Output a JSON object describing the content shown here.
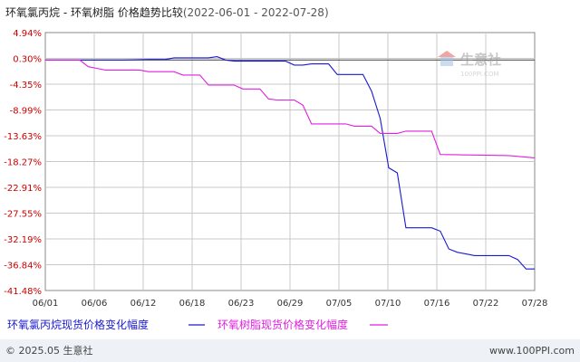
{
  "header": {
    "title_a": "环氧氯丙烷",
    "title_sep": " - ",
    "title_b": "环氧树脂",
    "title_suffix": " 价格趋势比较",
    "date_range": "(2022-06-01 - 2022-07-28)"
  },
  "watermark": {
    "text": "生意社",
    "sub_text": "100PPI.COM"
  },
  "footer": {
    "copyright": "© 2025.05 生意社",
    "url": "www.100PPI.com"
  },
  "colors": {
    "series_a": "#1a1ad0",
    "series_b": "#e21ee2",
    "zero_line": "#555555",
    "grid": "#c8c8c8",
    "footer_bg": "#eef1f6"
  },
  "chart_data": {
    "type": "line",
    "x_ticks": [
      "06/01",
      "06/06",
      "06/12",
      "06/18",
      "06/23",
      "06/29",
      "07/05",
      "07/10",
      "07/16",
      "07/22",
      "07/28"
    ],
    "y_ticks": [
      "4.94%",
      "0.30%",
      "-4.35%",
      "-8.99%",
      "-13.63%",
      "-18.27%",
      "-22.91%",
      "-27.55%",
      "-32.19%",
      "-36.84%",
      "-41.48%"
    ],
    "ylim": [
      -41.48,
      4.94
    ],
    "xlim": [
      "2022-06-01",
      "2022-07-28"
    ],
    "grid": true,
    "legend_position": "bottom",
    "series": [
      {
        "name": "环氧氯丙烷现货价格变化幅度",
        "color": "#1a1ad0",
        "points": [
          [
            "2022-06-01",
            0.0
          ],
          [
            "2022-06-02",
            0.0
          ],
          [
            "2022-06-06",
            0.0
          ],
          [
            "2022-06-07",
            0.0
          ],
          [
            "2022-06-10",
            0.0
          ],
          [
            "2022-06-13",
            0.1
          ],
          [
            "2022-06-15",
            0.1
          ],
          [
            "2022-06-16",
            0.4
          ],
          [
            "2022-06-20",
            0.4
          ],
          [
            "2022-06-21",
            0.6
          ],
          [
            "2022-06-22",
            0.0
          ],
          [
            "2022-06-23",
            -0.2
          ],
          [
            "2022-06-29",
            -0.2
          ],
          [
            "2022-06-30",
            -0.9
          ],
          [
            "2022-07-01",
            -0.9
          ],
          [
            "2022-07-02",
            -0.7
          ],
          [
            "2022-07-04",
            -0.7
          ],
          [
            "2022-07-05",
            -2.6
          ],
          [
            "2022-07-08",
            -2.6
          ],
          [
            "2022-07-09",
            -5.6
          ],
          [
            "2022-07-10",
            -10.5
          ],
          [
            "2022-07-11",
            -19.4
          ],
          [
            "2022-07-12",
            -20.3
          ],
          [
            "2022-07-13",
            -30.2
          ],
          [
            "2022-07-15",
            -30.2
          ],
          [
            "2022-07-16",
            -30.2
          ],
          [
            "2022-07-17",
            -30.8
          ],
          [
            "2022-07-18",
            -34.0
          ],
          [
            "2022-07-19",
            -34.6
          ],
          [
            "2022-07-20",
            -34.9
          ],
          [
            "2022-07-21",
            -35.2
          ],
          [
            "2022-07-25",
            -35.2
          ],
          [
            "2022-07-26",
            -35.9
          ],
          [
            "2022-07-27",
            -37.6
          ],
          [
            "2022-07-28",
            -37.6
          ]
        ]
      },
      {
        "name": "环氧树脂现货价格变化幅度",
        "color": "#e21ee2",
        "points": [
          [
            "2022-06-01",
            0.0
          ],
          [
            "2022-06-02",
            0.0
          ],
          [
            "2022-06-05",
            0.0
          ],
          [
            "2022-06-06",
            -1.2
          ],
          [
            "2022-06-07",
            -1.5
          ],
          [
            "2022-06-08",
            -1.8
          ],
          [
            "2022-06-12",
            -1.8
          ],
          [
            "2022-06-13",
            -2.1
          ],
          [
            "2022-06-16",
            -2.1
          ],
          [
            "2022-06-17",
            -2.7
          ],
          [
            "2022-06-18",
            -2.7
          ],
          [
            "2022-06-19",
            -2.7
          ],
          [
            "2022-06-20",
            -4.5
          ],
          [
            "2022-06-23",
            -4.5
          ],
          [
            "2022-06-24",
            -5.2
          ],
          [
            "2022-06-26",
            -5.2
          ],
          [
            "2022-06-27",
            -7.0
          ],
          [
            "2022-06-28",
            -7.2
          ],
          [
            "2022-06-30",
            -7.2
          ],
          [
            "2022-07-01",
            -8.1
          ],
          [
            "2022-07-02",
            -11.5
          ],
          [
            "2022-07-06",
            -11.5
          ],
          [
            "2022-07-07",
            -11.9
          ],
          [
            "2022-07-09",
            -11.9
          ],
          [
            "2022-07-10",
            -13.2
          ],
          [
            "2022-07-12",
            -13.2
          ],
          [
            "2022-07-13",
            -12.8
          ],
          [
            "2022-07-16",
            -12.8
          ],
          [
            "2022-07-17",
            -17.0
          ],
          [
            "2022-07-21",
            -17.1
          ],
          [
            "2022-07-25",
            -17.2
          ],
          [
            "2022-07-28",
            -17.6
          ]
        ]
      }
    ]
  }
}
